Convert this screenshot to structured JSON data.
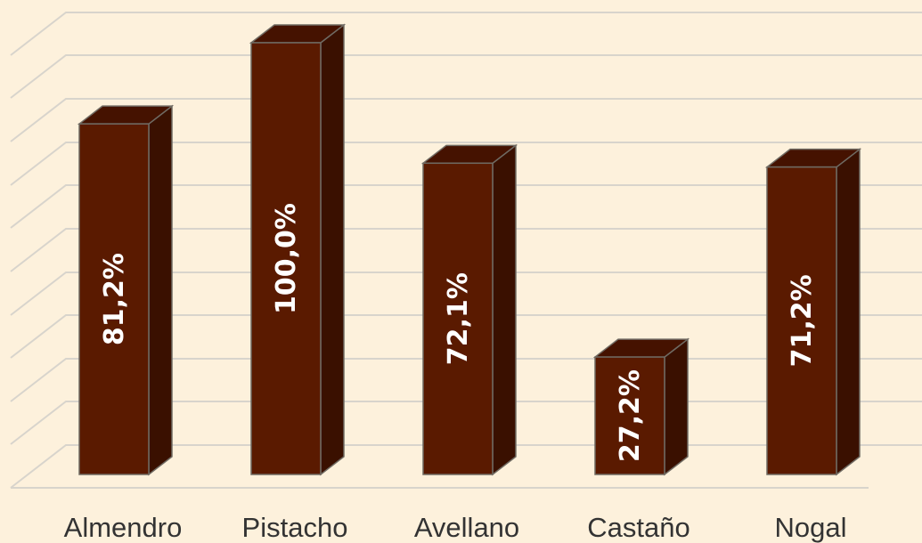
{
  "chart_data": {
    "type": "bar",
    "style": "3d-column",
    "categories": [
      "Almendro",
      "Pistacho",
      "Avellano",
      "Castaño",
      "Nogal"
    ],
    "values": [
      81.2,
      100.0,
      72.1,
      27.2,
      71.2
    ],
    "data_labels": [
      "81,2%",
      "100,0%",
      "72,1%",
      "27,2%",
      "71,2%"
    ],
    "ylim": [
      0,
      105
    ],
    "grid": true,
    "legend": "none",
    "colors": {
      "bar_front": "#5a1a00",
      "bar_top": "#451200",
      "bar_side": "#3a1000",
      "background": "#fdf1dc",
      "grid": "#d8d4cc",
      "value_text": "#ffffff",
      "category_text": "#333333"
    }
  }
}
